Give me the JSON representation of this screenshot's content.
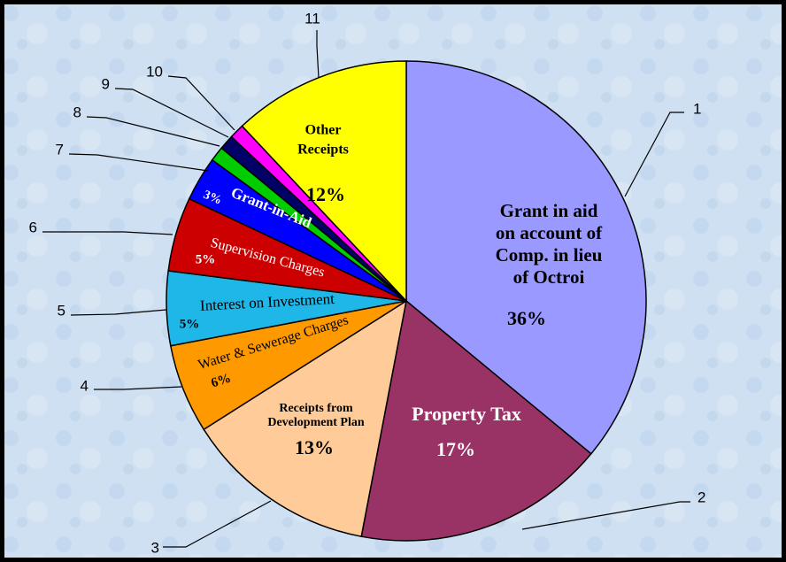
{
  "chart_data": {
    "type": "pie",
    "categories": [
      [
        "Grant in aid",
        "on account of",
        "Comp. in lieu",
        "of  Octroi"
      ],
      [
        "Property Tax"
      ],
      [
        "Receipts from",
        "Development Plan"
      ],
      [
        "Water  & Sewerage Charges"
      ],
      [
        "Interest on Investment"
      ],
      [
        "Supervision Charges"
      ],
      [
        "Grant-in-Aid"
      ],
      null,
      null,
      null,
      [
        "Other",
        "Receipts"
      ]
    ],
    "values": [
      36,
      17,
      13,
      6,
      5,
      5,
      3,
      1,
      1,
      1,
      12
    ],
    "value_labels": [
      "36%",
      "17%",
      "13%",
      "6%",
      "5%",
      "5%",
      "3%",
      null,
      null,
      null,
      "12%"
    ],
    "leader_labels": [
      1,
      2,
      3,
      4,
      5,
      6,
      7,
      8,
      9,
      10,
      11
    ],
    "colors": [
      "#9999ff",
      "#993366",
      "#ffcc99",
      "#ff9900",
      "#1fb6e8",
      "#cc0000",
      "#0000ff",
      "#00cc00",
      "#000066",
      "#ff00ff",
      "#ffff00"
    ]
  }
}
